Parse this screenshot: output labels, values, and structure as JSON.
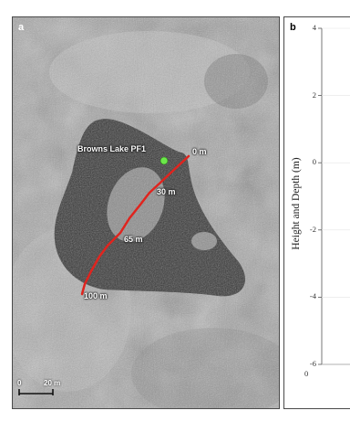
{
  "panel_a": {
    "letter": "a",
    "site_label": "Browns Lake PF1",
    "distance_labels": [
      "0 m",
      "30 m",
      "65 m",
      "100 m"
    ],
    "scale_bar": {
      "start_label": "0",
      "end_label": "20 m"
    },
    "colors": {
      "transect": "#e0241e",
      "site_marker": "#6ce84a"
    }
  },
  "panel_b": {
    "letter": "b",
    "ylabel": "Height and Depth (m)",
    "xtick_labels": [
      "0"
    ]
  },
  "chart_data": {
    "type": "line",
    "title": "",
    "xlabel": "",
    "ylabel": "Height and Depth (m)",
    "ylim": [
      -6,
      4
    ],
    "yticks": [
      4,
      2,
      0,
      -2,
      -4,
      -6
    ],
    "xticks": [
      0
    ],
    "series": []
  }
}
